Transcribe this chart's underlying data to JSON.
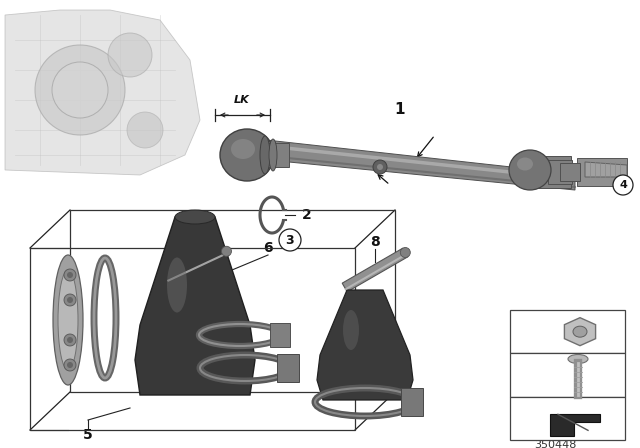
{
  "background_color": "#ffffff",
  "part_number": "350448",
  "fig_width": 6.4,
  "fig_height": 4.48,
  "dpi": 100,
  "annotation_color": "#111111",
  "line_color": "#222222",
  "shaft_color": "#808080",
  "shaft_dark": "#505050",
  "shaft_light": "#b0b0b0",
  "boot_color": "#404040",
  "boot_light": "#686868",
  "clamp_color": "#707070",
  "flange_color": "#909090",
  "tube_color": "#888888",
  "gearbox_color": "#c0c0c0",
  "gearbox_dark": "#909090"
}
